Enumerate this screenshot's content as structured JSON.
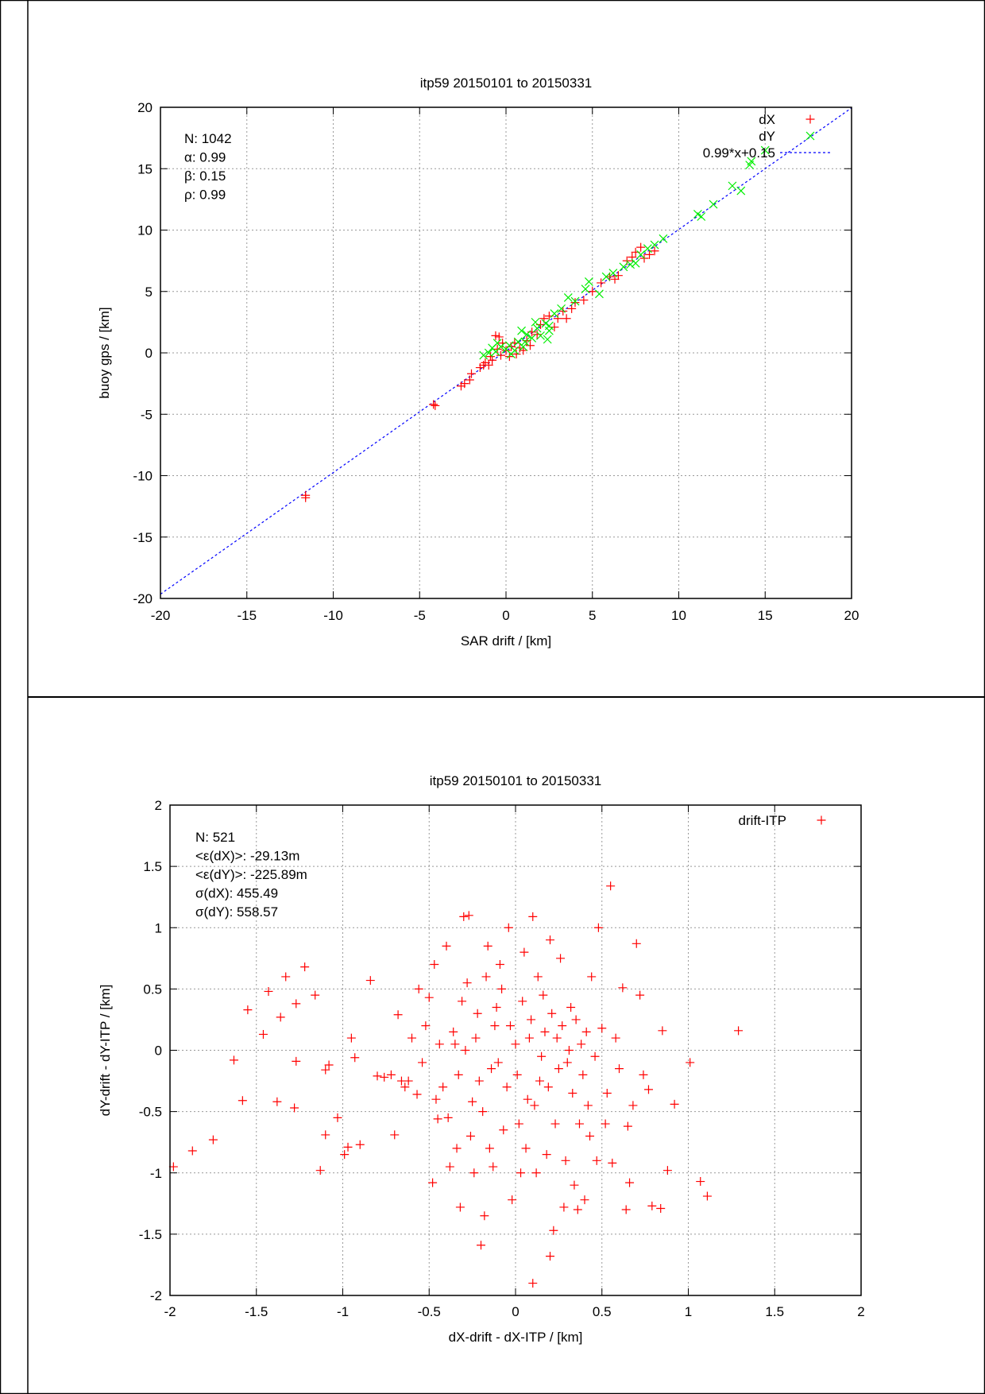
{
  "chart_data": [
    {
      "type": "scatter",
      "title": "itp59 20150101 to 20150331",
      "xlabel": "SAR drift / [km]",
      "ylabel": "buoy gps / [km]",
      "xlim": [
        -20,
        20
      ],
      "ylim": [
        -20,
        20
      ],
      "xticks": [
        "-20",
        "-15",
        "-10",
        "-5",
        "0",
        "5",
        "10",
        "15",
        "20"
      ],
      "yticks": [
        "-20",
        "-15",
        "-10",
        "-5",
        "0",
        "5",
        "10",
        "15",
        "20"
      ],
      "grid": true,
      "legend_position": "top-right",
      "stats": [
        "N: 1042",
        "α: 0.99",
        "β: 0.15",
        "ρ: 0.99"
      ],
      "colors": {
        "dX": "#ff0000",
        "dY": "#00ee00",
        "fit": "#0000ff"
      },
      "fit": {
        "label": "0.99*x+0.15",
        "slope": 0.99,
        "intercept": 0.15
      },
      "series": [
        {
          "name": "dX",
          "marker": "+",
          "points": [
            [
              -11.6,
              -11.8
            ],
            [
              -11.6,
              -11.6
            ],
            [
              -4.2,
              -4.2
            ],
            [
              -4.1,
              -4.3
            ],
            [
              -2.6,
              -2.7
            ],
            [
              -2.4,
              -2.5
            ],
            [
              -2.1,
              -2.2
            ],
            [
              -2,
              -1.7
            ],
            [
              -1.5,
              -1.2
            ],
            [
              -1.3,
              -1
            ],
            [
              -1.2,
              -0.8
            ],
            [
              -1,
              -1
            ],
            [
              -0.8,
              -0.6
            ],
            [
              -0.6,
              1.4
            ],
            [
              -0.4,
              1.3
            ],
            [
              -0.5,
              0.3
            ],
            [
              -0.3,
              -0.2
            ],
            [
              0,
              0.2
            ],
            [
              0.2,
              -0.3
            ],
            [
              0.3,
              0.5
            ],
            [
              0.5,
              0.8
            ],
            [
              0.8,
              0.4
            ],
            [
              1,
              0.2
            ],
            [
              1.2,
              1
            ],
            [
              1.5,
              1.7
            ],
            [
              1.8,
              1.5
            ],
            [
              2,
              2.3
            ],
            [
              2.2,
              2.8
            ],
            [
              2.5,
              3
            ],
            [
              3,
              2.8
            ],
            [
              3.3,
              3.4
            ],
            [
              3.5,
              2.8
            ],
            [
              4,
              4.1
            ],
            [
              4.5,
              4.3
            ],
            [
              5,
              5
            ],
            [
              5.5,
              5.7
            ],
            [
              6,
              6.2
            ],
            [
              6.5,
              6.3
            ],
            [
              7,
              7.5
            ],
            [
              7.3,
              7.8
            ],
            [
              7.5,
              8.2
            ],
            [
              7.8,
              8.6
            ],
            [
              8,
              7.7
            ],
            [
              8.3,
              8
            ],
            [
              8.6,
              8.3
            ],
            [
              -0.9,
              -0.3
            ],
            [
              -0.2,
              0.8
            ],
            [
              0.6,
              -0.1
            ],
            [
              1.4,
              0.6
            ],
            [
              2.8,
              2.1
            ],
            [
              3.8,
              3.6
            ],
            [
              6.3,
              6
            ]
          ]
        },
        {
          "name": "dY",
          "marker": "x",
          "points": [
            [
              -1.3,
              -0.2
            ],
            [
              -1,
              0
            ],
            [
              -0.8,
              0.4
            ],
            [
              -0.5,
              0.8
            ],
            [
              -0.3,
              0.5
            ],
            [
              0,
              0.3
            ],
            [
              0.2,
              0.6
            ],
            [
              0.5,
              0.2
            ],
            [
              0.7,
              0.9
            ],
            [
              1,
              0.5
            ],
            [
              1.2,
              1.5
            ],
            [
              1.5,
              1.2
            ],
            [
              1.8,
              2
            ],
            [
              2,
              1.4
            ],
            [
              2.3,
              2.4
            ],
            [
              2.5,
              1.8
            ],
            [
              2.5,
              2.2
            ],
            [
              2.8,
              3.2
            ],
            [
              3.2,
              3.6
            ],
            [
              3.6,
              4.5
            ],
            [
              4,
              4.2
            ],
            [
              4.6,
              5.2
            ],
            [
              4.8,
              5.8
            ],
            [
              5.4,
              4.8
            ],
            [
              5.8,
              6.2
            ],
            [
              6.2,
              6.5
            ],
            [
              6.8,
              7
            ],
            [
              7.2,
              7.2
            ],
            [
              7.5,
              7.3
            ],
            [
              7.8,
              8
            ],
            [
              8.2,
              8.5
            ],
            [
              8.6,
              8.8
            ],
            [
              9.1,
              9.3
            ],
            [
              11.1,
              11.3
            ],
            [
              11.3,
              11.1
            ],
            [
              12,
              12.1
            ],
            [
              13.1,
              13.6
            ],
            [
              13.6,
              13.2
            ],
            [
              14.1,
              15.3
            ],
            [
              14.2,
              15.6
            ],
            [
              15,
              16.5
            ],
            [
              -0.6,
              0.1
            ],
            [
              0.3,
              -0.1
            ],
            [
              1.1,
              0.9
            ],
            [
              1.7,
              2.5
            ],
            [
              2.4,
              1.1
            ],
            [
              0.9,
              1.8
            ]
          ]
        }
      ]
    },
    {
      "type": "scatter",
      "title": "itp59 20150101 to 20150331",
      "xlabel": "dX-drift - dX-ITP / [km]",
      "ylabel": "dY-drift - dY-ITP / [km]",
      "xlim": [
        -2,
        2
      ],
      "ylim": [
        -2,
        2
      ],
      "xticks": [
        "-2",
        "-1.5",
        "-1",
        "-0.5",
        "0",
        "0.5",
        "1",
        "1.5",
        "2"
      ],
      "yticks": [
        "-2",
        "-1.5",
        "-1",
        "-0.5",
        "0",
        "0.5",
        "1",
        "1.5",
        "2"
      ],
      "grid": true,
      "legend_position": "top-right",
      "stats": [
        "N: 521",
        "<ε(dX)>:  -29.13m",
        "<ε(dY)>: -225.89m",
        "σ(dX):  455.49",
        "σ(dY):  558.57"
      ],
      "colors": {
        "drift-ITP": "#ff0000"
      },
      "series": [
        {
          "name": "drift-ITP",
          "marker": "+",
          "points": [
            [
              -1.98,
              -0.95
            ],
            [
              -1.87,
              -0.82
            ],
            [
              -1.75,
              -0.73
            ],
            [
              -1.63,
              -0.08
            ],
            [
              -1.58,
              -0.41
            ],
            [
              -1.55,
              0.33
            ],
            [
              -1.46,
              0.13
            ],
            [
              -1.43,
              0.48
            ],
            [
              -1.38,
              -0.42
            ],
            [
              -1.36,
              0.27
            ],
            [
              -1.33,
              0.6
            ],
            [
              -1.28,
              -0.47
            ],
            [
              -1.27,
              0.38
            ],
            [
              -1.27,
              -0.09
            ],
            [
              -1.22,
              0.68
            ],
            [
              -1.16,
              0.45
            ],
            [
              -1.13,
              -0.98
            ],
            [
              -1.1,
              -0.69
            ],
            [
              -1.1,
              -0.16
            ],
            [
              -1.08,
              -0.12
            ],
            [
              -1.03,
              -0.55
            ],
            [
              -0.99,
              -0.85
            ],
            [
              -0.97,
              -0.79
            ],
            [
              -0.95,
              0.1
            ],
            [
              -0.93,
              -0.06
            ],
            [
              -0.9,
              -0.77
            ],
            [
              -0.84,
              0.57
            ],
            [
              -0.8,
              -0.21
            ],
            [
              -0.7,
              -0.69
            ],
            [
              -0.68,
              0.29
            ],
            [
              -0.66,
              -0.25
            ],
            [
              -0.6,
              0.1
            ],
            [
              -0.57,
              -0.36
            ],
            [
              -0.56,
              0.5
            ],
            [
              -0.5,
              0.43
            ],
            [
              -0.48,
              -1.08
            ],
            [
              -0.47,
              0.7
            ],
            [
              -0.45,
              -0.56
            ],
            [
              -0.4,
              0.85
            ],
            [
              -0.38,
              -0.95
            ],
            [
              -0.35,
              0.05
            ],
            [
              -0.32,
              -1.28
            ],
            [
              -0.3,
              1.09
            ],
            [
              -0.28,
              0.55
            ],
            [
              -0.27,
              1.1
            ],
            [
              -0.25,
              -0.42
            ],
            [
              -0.22,
              0.3
            ],
            [
              -0.2,
              -1.59
            ],
            [
              -0.18,
              -1.35
            ],
            [
              -0.16,
              0.85
            ],
            [
              -0.15,
              -0.8
            ],
            [
              -0.12,
              0.2
            ],
            [
              -0.1,
              -0.1
            ],
            [
              -0.08,
              0.5
            ],
            [
              -0.05,
              -0.3
            ],
            [
              -0.04,
              1.0
            ],
            [
              -0.02,
              -1.22
            ],
            [
              0,
              0.05
            ],
            [
              0.02,
              -0.6
            ],
            [
              0.05,
              0.8
            ],
            [
              0.07,
              -0.4
            ],
            [
              0.08,
              0.1
            ],
            [
              0.1,
              -1.9
            ],
            [
              0.1,
              1.09
            ],
            [
              0.12,
              -1.0
            ],
            [
              0.14,
              -0.25
            ],
            [
              0.16,
              0.45
            ],
            [
              0.18,
              -0.85
            ],
            [
              0.2,
              -1.68
            ],
            [
              0.22,
              -1.47
            ],
            [
              0.24,
              0.1
            ],
            [
              0.26,
              0.75
            ],
            [
              0.28,
              -1.28
            ],
            [
              0.3,
              -0.1
            ],
            [
              0.32,
              0.35
            ],
            [
              0.34,
              -1.1
            ],
            [
              0.37,
              -0.6
            ],
            [
              0.38,
              0.05
            ],
            [
              0.4,
              -1.22
            ],
            [
              0.42,
              -0.45
            ],
            [
              0.44,
              0.6
            ],
            [
              0.47,
              -0.9
            ],
            [
              0.48,
              1.0
            ],
            [
              0.5,
              0.18
            ],
            [
              0.53,
              -0.35
            ],
            [
              0.55,
              1.34
            ],
            [
              0.56,
              -0.92
            ],
            [
              0.6,
              -0.15
            ],
            [
              0.62,
              0.51
            ],
            [
              0.64,
              -1.3
            ],
            [
              0.65,
              -0.62
            ],
            [
              0.66,
              -1.08
            ],
            [
              0.7,
              0.87
            ],
            [
              0.72,
              0.45
            ],
            [
              0.77,
              -0.32
            ],
            [
              0.79,
              -1.27
            ],
            [
              0.84,
              -1.29
            ],
            [
              0.85,
              0.16
            ],
            [
              0.88,
              -0.98
            ],
            [
              0.92,
              -0.44
            ],
            [
              1.01,
              -0.1
            ],
            [
              1.07,
              -1.07
            ],
            [
              1.11,
              -1.19
            ],
            [
              1.29,
              0.16
            ],
            [
              -0.42,
              -0.3
            ],
            [
              -0.36,
              0.15
            ],
            [
              -0.33,
              -0.2
            ],
            [
              -0.29,
              0.0
            ],
            [
              -0.26,
              -0.7
            ],
            [
              -0.23,
              0.1
            ],
            [
              -0.19,
              -0.5
            ],
            [
              -0.17,
              0.6
            ],
            [
              -0.14,
              -0.15
            ],
            [
              -0.11,
              0.35
            ],
            [
              -0.07,
              -0.65
            ],
            [
              -0.03,
              0.2
            ],
            [
              0.01,
              -0.2
            ],
            [
              0.04,
              0.4
            ],
            [
              0.06,
              -0.8
            ],
            [
              0.09,
              0.25
            ],
            [
              0.11,
              -0.45
            ],
            [
              0.13,
              0.6
            ],
            [
              0.15,
              -0.05
            ],
            [
              0.17,
              0.15
            ],
            [
              0.19,
              -0.3
            ],
            [
              0.21,
              0.3
            ],
            [
              0.23,
              -0.6
            ],
            [
              0.25,
              -0.15
            ],
            [
              0.27,
              0.2
            ],
            [
              0.29,
              -0.9
            ],
            [
              0.31,
              0.0
            ],
            [
              0.33,
              -0.35
            ],
            [
              0.35,
              0.25
            ],
            [
              0.39,
              -0.2
            ],
            [
              0.41,
              0.15
            ],
            [
              0.43,
              -0.7
            ],
            [
              0.46,
              -0.05
            ],
            [
              0.52,
              -0.6
            ],
            [
              0.58,
              0.1
            ],
            [
              -0.62,
              -0.25
            ],
            [
              -0.54,
              -0.1
            ],
            [
              -0.52,
              0.2
            ],
            [
              -0.46,
              -0.4
            ],
            [
              -0.44,
              0.05
            ],
            [
              -0.39,
              -0.55
            ],
            [
              -0.34,
              -0.8
            ],
            [
              -0.31,
              0.4
            ],
            [
              -0.24,
              -1.0
            ],
            [
              -0.21,
              -0.25
            ],
            [
              -0.13,
              -0.95
            ],
            [
              -0.09,
              0.7
            ],
            [
              0.03,
              -1.0
            ],
            [
              0.2,
              0.9
            ],
            [
              0.36,
              -1.3
            ],
            [
              -0.72,
              -0.2
            ],
            [
              -0.76,
              -0.22
            ],
            [
              0.68,
              -0.45
            ],
            [
              0.74,
              -0.2
            ],
            [
              -0.64,
              -0.3
            ]
          ]
        }
      ]
    }
  ]
}
